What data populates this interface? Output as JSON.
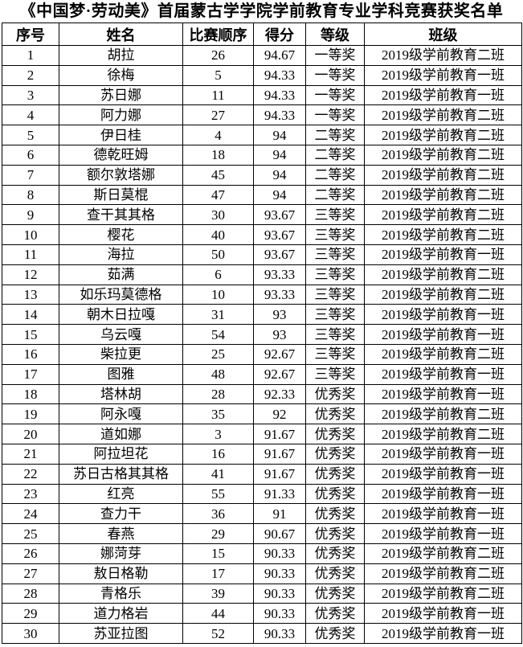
{
  "title": "《中国梦·劳动美》首届蒙古学学院学前教育专业学科竞赛获奖名单",
  "table": {
    "columns": [
      "序号",
      "姓名",
      "比赛顺序",
      "得分",
      "等级",
      "班级"
    ],
    "rows": [
      [
        "1",
        "胡拉",
        "26",
        "94.67",
        "一等奖",
        "2019级学前教育二班"
      ],
      [
        "2",
        "徐梅",
        "5",
        "94.33",
        "一等奖",
        "2019级学前教育一班"
      ],
      [
        "3",
        "苏日娜",
        "11",
        "94.33",
        "一等奖",
        "2019级学前教育一班"
      ],
      [
        "4",
        "阿力娜",
        "27",
        "94.33",
        "一等奖",
        "2019级学前教育二班"
      ],
      [
        "5",
        "伊日桂",
        "4",
        "94",
        "二等奖",
        "2019级学前教育二班"
      ],
      [
        "6",
        "德乾旺姆",
        "18",
        "94",
        "二等奖",
        "2019级学前教育二班"
      ],
      [
        "7",
        "额尔敦塔娜",
        "45",
        "94",
        "二等奖",
        "2019级学前教育二班"
      ],
      [
        "8",
        "斯日莫棍",
        "47",
        "94",
        "二等奖",
        "2019级学前教育二班"
      ],
      [
        "9",
        "查干其其格",
        "30",
        "93.67",
        "三等奖",
        "2019级学前教育二班"
      ],
      [
        "10",
        "樱花",
        "40",
        "93.67",
        "三等奖",
        "2019级学前教育二班"
      ],
      [
        "11",
        "海拉",
        "50",
        "93.67",
        "三等奖",
        "2019级学前教育一班"
      ],
      [
        "12",
        "茹满",
        "6",
        "93.33",
        "三等奖",
        "2019级学前教育二班"
      ],
      [
        "13",
        "如乐玛莫德格",
        "10",
        "93.33",
        "三等奖",
        "2019级学前教育二班"
      ],
      [
        "14",
        "朝木日拉嘎",
        "31",
        "93",
        "三等奖",
        "2019级学前教育一班"
      ],
      [
        "15",
        "乌云嘎",
        "54",
        "93",
        "三等奖",
        "2019级学前教育一班"
      ],
      [
        "16",
        "柴拉更",
        "25",
        "92.67",
        "三等奖",
        "2019级学前教育二班"
      ],
      [
        "17",
        "图雅",
        "48",
        "92.67",
        "三等奖",
        "2019级学前教育一班"
      ],
      [
        "18",
        "塔林胡",
        "28",
        "92.33",
        "优秀奖",
        "2019级学前教育一班"
      ],
      [
        "19",
        "阿永嘎",
        "35",
        "92",
        "优秀奖",
        "2019级学前教育二班"
      ],
      [
        "20",
        "道如娜",
        "3",
        "91.67",
        "优秀奖",
        "2019级学前教育二班"
      ],
      [
        "21",
        "阿拉坦花",
        "16",
        "91.67",
        "优秀奖",
        "2019级学前教育一班"
      ],
      [
        "22",
        "苏日古格其其格",
        "41",
        "91.67",
        "优秀奖",
        "2019级学前教育一班"
      ],
      [
        "23",
        "红亮",
        "55",
        "91.33",
        "优秀奖",
        "2019级学前教育一班"
      ],
      [
        "24",
        "查力干",
        "36",
        "91",
        "优秀奖",
        "2019级学前教育一班"
      ],
      [
        "25",
        "春燕",
        "29",
        "90.67",
        "优秀奖",
        "2019级学前教育一班"
      ],
      [
        "26",
        "娜菏芽",
        "15",
        "90.33",
        "优秀奖",
        "2019级学前教育二班"
      ],
      [
        "27",
        "敖日格勒",
        "17",
        "90.33",
        "优秀奖",
        "2019级学前教育二班"
      ],
      [
        "28",
        "青格乐",
        "39",
        "90.33",
        "优秀奖",
        "2019级学前教育二班"
      ],
      [
        "29",
        "道力格岩",
        "44",
        "90.33",
        "优秀奖",
        "2019级学前教育一班"
      ],
      [
        "30",
        "苏亚拉图",
        "52",
        "90.33",
        "优秀奖",
        "2019级学前教育一班"
      ]
    ]
  }
}
